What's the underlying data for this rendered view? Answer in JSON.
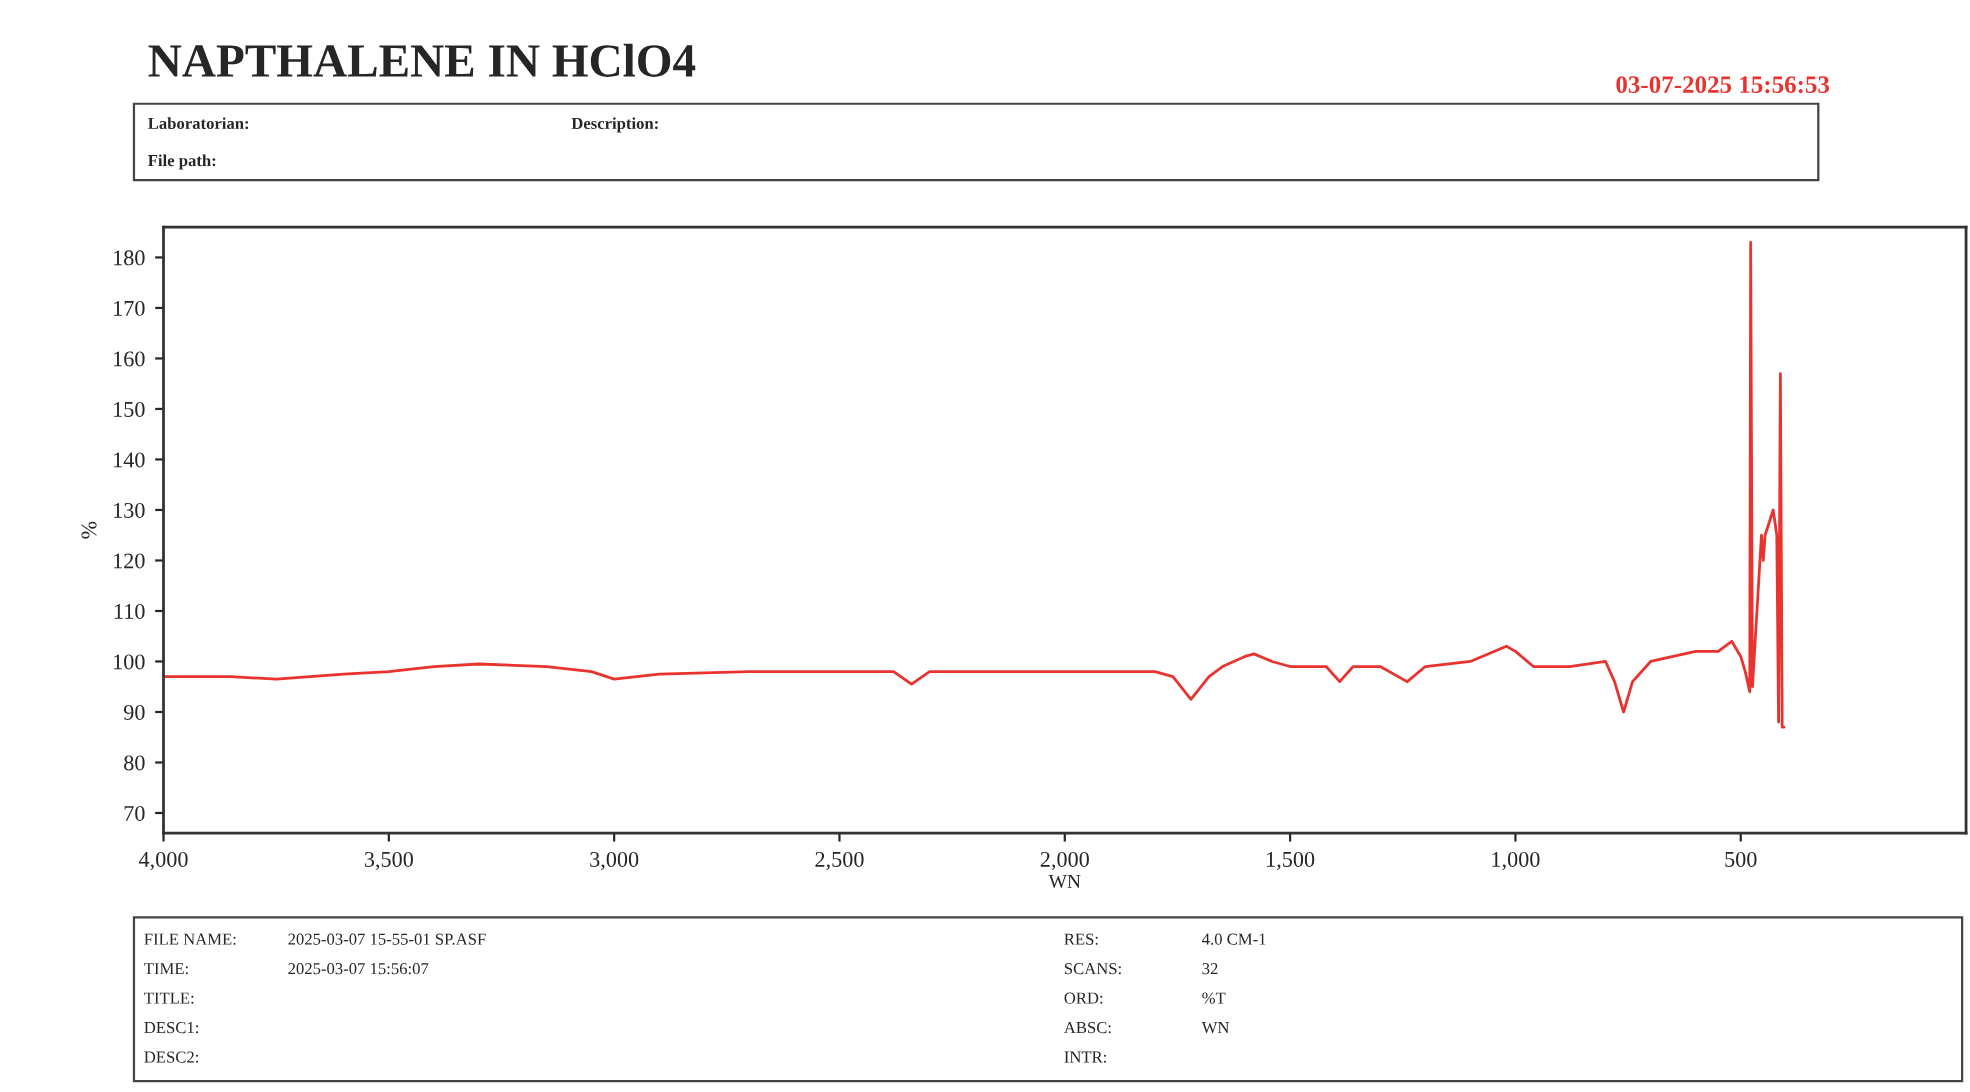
{
  "chart_data": {
    "type": "line",
    "title": "NAPTHALENE IN HClO4",
    "subtitle": "03-07-2025 15:56:53",
    "annotations": [
      "Laboratorian:",
      "Description:",
      "File path:",
      "FILE NAME:",
      "2025-03-07 15-55-01 SP.ASF",
      "TIME:",
      "2025-03-07 15:56:07",
      "TITLE:",
      "DESC1:",
      "DESC2:",
      "RES:",
      "4.0 CM-1",
      "SCANS:",
      "32",
      "ORD:",
      "%T",
      "ABSC:",
      "WN",
      "INTR:"
    ],
    "xlabel": "WN",
    "ylabel": "%",
    "xlim": [
      4000,
      0
    ],
    "ylim": [
      66,
      186
    ],
    "xticks": [
      {
        "value": 4000,
        "label": "4,000"
      },
      {
        "value": 3500,
        "label": "3,500"
      },
      {
        "value": 3000,
        "label": "3,000"
      },
      {
        "value": 2500,
        "label": "2,500"
      },
      {
        "value": 2000,
        "label": "2,000"
      },
      {
        "value": 1500,
        "label": "1,500"
      },
      {
        "value": 1000,
        "label": "1,000"
      },
      500
    ],
    "yticks": [
      70,
      80,
      90,
      100,
      110,
      120,
      130,
      140,
      150,
      160,
      170,
      180
    ],
    "grid": false,
    "legend": false,
    "series": [
      {
        "color": "#e8332f",
        "x": [
          4000,
          3850,
          3750,
          3600,
          3500,
          3400,
          3300,
          3150,
          3050,
          3000,
          2900,
          2700,
          2500,
          2380,
          2340,
          2300,
          2200,
          2000,
          1800,
          1760,
          1720,
          1680,
          1650,
          1600,
          1580,
          1540,
          1500,
          1420,
          1390,
          1360,
          1340,
          1300,
          1260,
          1240,
          1200,
          1100,
          1020,
          1000,
          960,
          920,
          880,
          800,
          780,
          760,
          740,
          700,
          650,
          600,
          550,
          520,
          500,
          490,
          480,
          478,
          474,
          466,
          460,
          454,
          450,
          446,
          440,
          436,
          432,
          428,
          424,
          420,
          416,
          412,
          408,
          404
        ],
        "values": [
          97,
          97,
          96.5,
          97.5,
          98,
          99,
          99.5,
          99,
          98,
          96.5,
          97.5,
          98,
          98,
          98,
          95.5,
          98,
          98,
          98,
          98,
          97,
          92.5,
          97,
          99,
          101,
          101.5,
          100,
          99,
          99,
          96,
          99,
          99,
          99,
          97,
          96,
          99,
          100,
          103,
          102,
          99,
          99,
          99,
          100,
          96,
          90,
          96,
          100,
          101,
          102,
          102,
          104,
          101,
          98,
          94,
          183,
          95,
          null,
          null,
          125,
          120,
          125,
          null,
          null,
          null,
          130,
          null,
          125,
          88,
          157,
          87,
          87
        ]
      }
    ]
  }
}
